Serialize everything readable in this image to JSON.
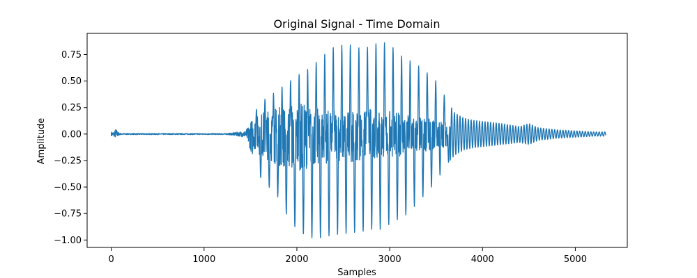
{
  "chart_data": {
    "type": "line",
    "title": "Original Signal - Time Domain",
    "xlabel": "Samples",
    "ylabel": "Amplitude",
    "xlim": [
      -260,
      5560
    ],
    "ylim": [
      -1.07,
      0.95
    ],
    "x_ticks": [
      0,
      1000,
      2000,
      3000,
      4000,
      5000
    ],
    "x_tick_labels": [
      "0",
      "1000",
      "2000",
      "3000",
      "4000",
      "5000"
    ],
    "y_ticks": [
      0.75,
      0.5,
      0.25,
      0.0,
      -0.25,
      -0.5,
      -0.75,
      -1.0
    ],
    "y_tick_labels": [
      "0.75",
      "0.50",
      "0.25",
      "0.00",
      "−0.25",
      "−0.50",
      "−0.75",
      "−1.00"
    ],
    "grid": false,
    "legend": "none",
    "series": [
      {
        "color": "#1f77b4",
        "num_samples": 5330,
        "envelope": {
          "x": [
            0,
            30,
            50,
            70,
            100,
            1250,
            1450,
            1520,
            1600,
            1700,
            1800,
            1900,
            2000,
            2100,
            2200,
            2300,
            2400,
            2500,
            2600,
            2700,
            2800,
            2900,
            3000,
            3100,
            3200,
            3300,
            3400,
            3500,
            3600,
            3700,
            3800,
            3900,
            4000,
            4200,
            4400,
            4500,
            4600,
            4800,
            5000,
            5200,
            5330
          ],
          "upper": [
            0.02,
            0.02,
            0.05,
            0.02,
            0.005,
            0.005,
            0.03,
            0.15,
            0.3,
            0.35,
            0.42,
            0.48,
            0.55,
            0.6,
            0.67,
            0.75,
            0.82,
            0.84,
            0.84,
            0.8,
            0.83,
            0.87,
            0.85,
            0.75,
            0.7,
            0.65,
            0.58,
            0.5,
            0.35,
            0.2,
            0.15,
            0.13,
            0.12,
            0.1,
            0.07,
            0.1,
            0.06,
            0.04,
            0.03,
            0.02,
            0.02
          ],
          "lower": [
            -0.02,
            -0.02,
            -0.04,
            -0.02,
            -0.005,
            -0.005,
            -0.03,
            -0.2,
            -0.4,
            -0.5,
            -0.6,
            -0.78,
            -0.9,
            -0.96,
            -0.99,
            -0.97,
            -0.95,
            -0.94,
            -0.93,
            -0.92,
            -0.9,
            -0.9,
            -0.85,
            -0.8,
            -0.75,
            -0.65,
            -0.55,
            -0.45,
            -0.3,
            -0.2,
            -0.15,
            -0.13,
            -0.12,
            -0.1,
            -0.08,
            -0.1,
            -0.06,
            -0.04,
            -0.03,
            -0.02,
            -0.02
          ]
        },
        "dense_core": {
          "x": [
            1520,
            1600,
            1800,
            2000,
            2200,
            2400,
            2600,
            2800,
            3000,
            3200,
            3400,
            3600,
            3650
          ],
          "upper": [
            0.12,
            0.2,
            0.26,
            0.3,
            0.25,
            0.22,
            0.22,
            0.24,
            0.22,
            0.18,
            0.15,
            0.12,
            0.1
          ],
          "lower": [
            -0.12,
            -0.2,
            -0.3,
            -0.35,
            -0.3,
            -0.26,
            -0.26,
            -0.24,
            -0.22,
            -0.2,
            -0.16,
            -0.12,
            -0.1
          ]
        }
      }
    ]
  }
}
